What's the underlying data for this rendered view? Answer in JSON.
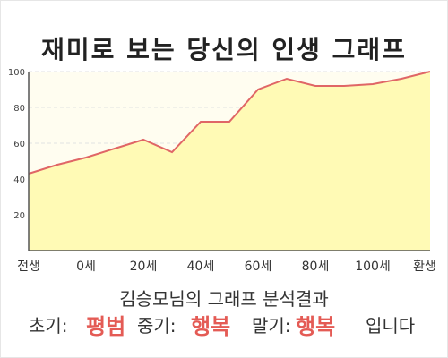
{
  "title": "재미로 보는 당신의 인생 그래프",
  "subtitle": "김승모님의 그래프 분석결과",
  "result": {
    "early_label": "초기:",
    "early_value": "평범",
    "mid_label": "중기:",
    "mid_value": "행복",
    "late_label": "말기:",
    "late_value": "행복",
    "ending": "입니다"
  },
  "colors": {
    "line": "#e06666",
    "fill": "#fffab5",
    "plot_bg": "#fffdf0",
    "result_highlight": "#e45b55"
  },
  "chart_data": {
    "type": "area",
    "x": [
      "전생",
      "",
      "0세",
      "",
      "20세",
      "",
      "40세",
      "",
      "60세",
      "",
      "80세",
      "",
      "100세",
      "",
      "환생"
    ],
    "y": [
      43,
      48,
      52,
      57,
      62,
      55,
      72,
      72,
      90,
      96,
      92,
      92,
      93,
      96,
      100
    ],
    "x_tick_labels": [
      "전생",
      "0세",
      "20세",
      "40세",
      "60세",
      "80세",
      "100세",
      "환생"
    ],
    "y_ticks": [
      20,
      40,
      60,
      80,
      100
    ],
    "ylim": [
      0,
      100
    ],
    "grid": true
  }
}
